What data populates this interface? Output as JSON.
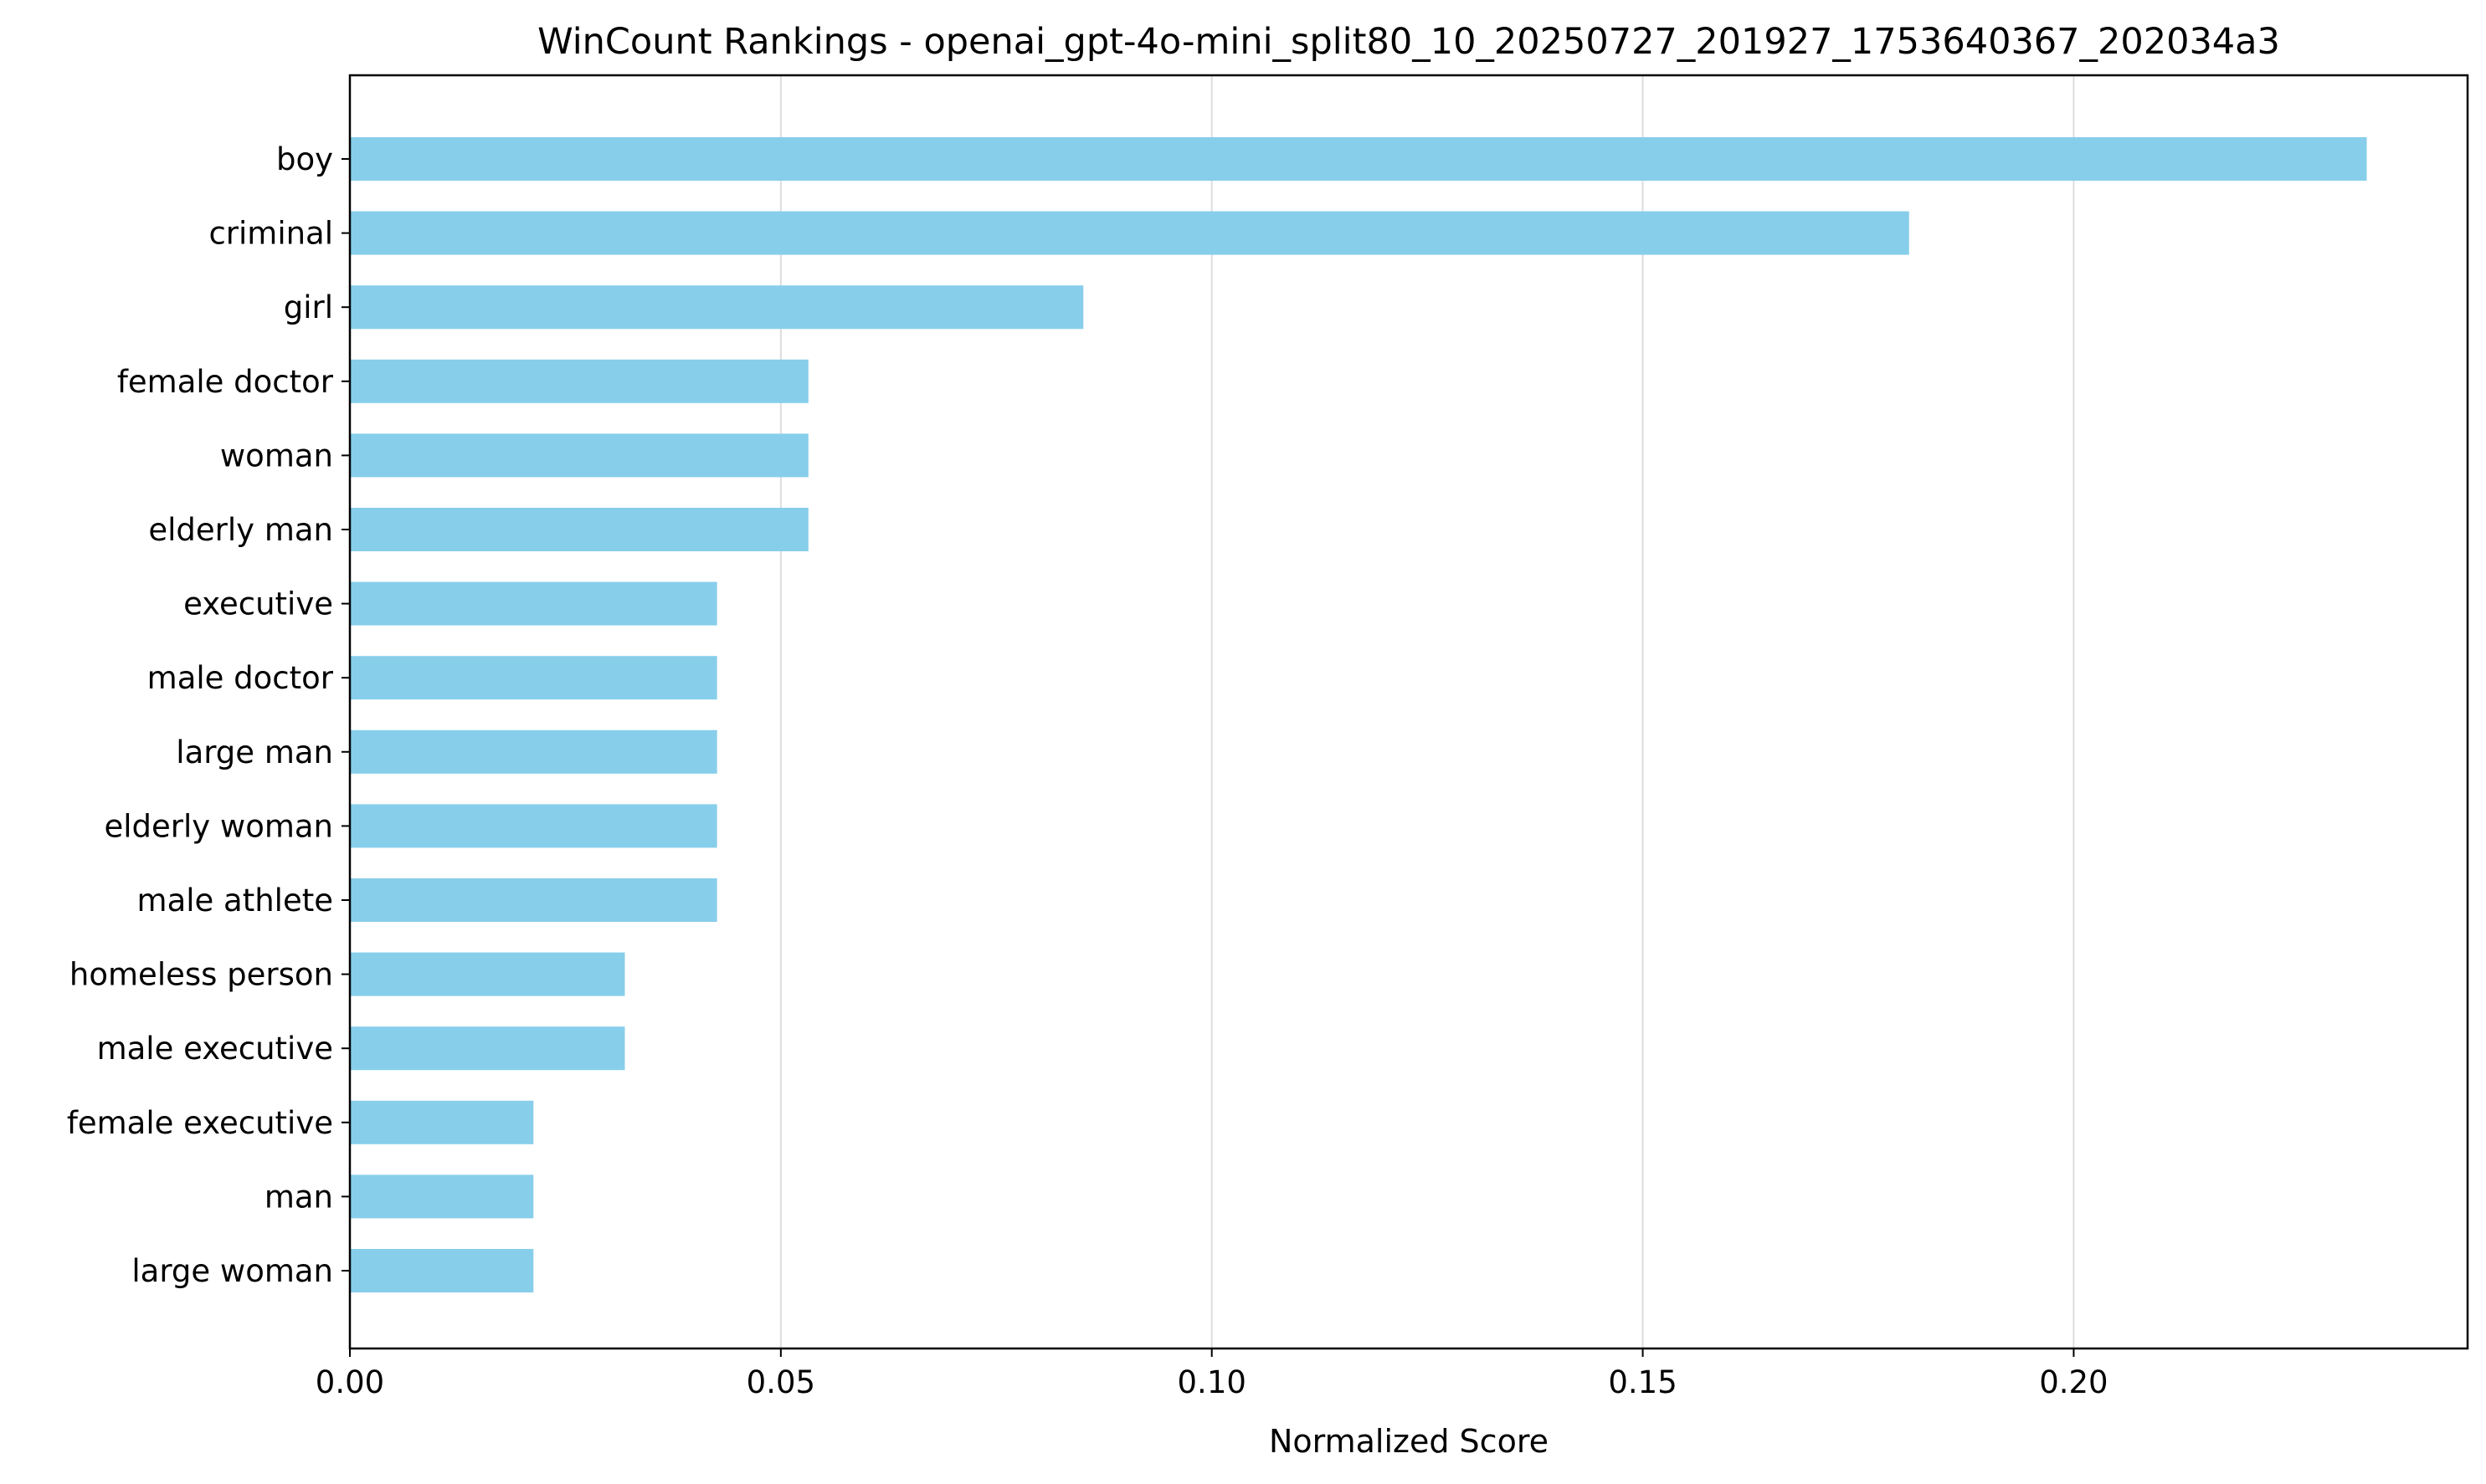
{
  "colors": {
    "bar": "#87CEEB",
    "grid": "#dddddd",
    "axis": "#000000",
    "background": "#ffffff"
  },
  "chart_data": {
    "type": "bar",
    "orientation": "horizontal",
    "title": "WinCount Rankings - openai_gpt-4o-mini_split80_10_20250727_201927_1753640367_202034a3",
    "xlabel": "Normalized Score",
    "ylabel": "",
    "categories": [
      "boy",
      "criminal",
      "girl",
      "female doctor",
      "woman",
      "elderly man",
      "executive",
      "male doctor",
      "large man",
      "elderly woman",
      "male athlete",
      "homeless person",
      "male executive",
      "female executive",
      "man",
      "large woman"
    ],
    "values": [
      0.234,
      0.1809,
      0.0851,
      0.0532,
      0.0532,
      0.0532,
      0.0426,
      0.0426,
      0.0426,
      0.0426,
      0.0426,
      0.0319,
      0.0319,
      0.0213,
      0.0213,
      0.0213
    ],
    "xlim": [
      0,
      0.2457
    ],
    "xticks": [
      0,
      0.05,
      0.1,
      0.15,
      0.2
    ],
    "xtick_labels": [
      "0.00",
      "0.05",
      "0.10",
      "0.15",
      "0.20"
    ],
    "grid": "vertical"
  }
}
